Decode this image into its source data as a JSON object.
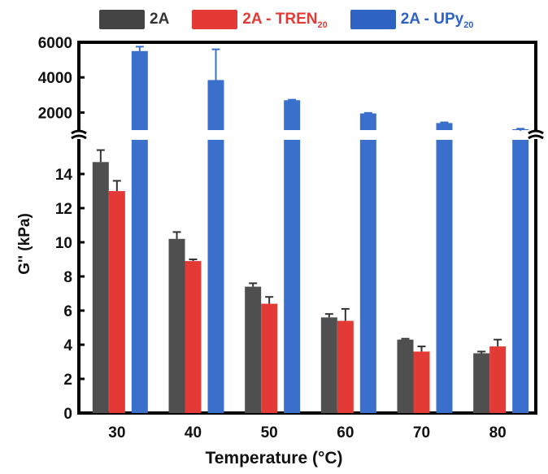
{
  "colors": {
    "2A": "#4f4f4f",
    "2A-TREN": "#e43a36",
    "2A-UPy": "#3a6fcc"
  },
  "legend": [
    {
      "key": "2A",
      "main": "2A",
      "sub": "",
      "color": "#444444"
    },
    {
      "key": "2A-TREN",
      "main": "2A - TREN",
      "sub": "20",
      "color": "#e43a36"
    },
    {
      "key": "2A-UPy",
      "main": "2A - UPy",
      "sub": "20",
      "color": "#2e63c4"
    }
  ],
  "chart_data": {
    "type": "bar",
    "xlabel": "Temperature (°C)",
    "ylabel": "G'' (kPa)",
    "broken_axis": true,
    "lower_ylim": [
      0,
      16
    ],
    "upper_ylim": [
      1000,
      6000
    ],
    "lower_ticks": [
      "0",
      "2",
      "4",
      "6",
      "8",
      "10",
      "12",
      "14"
    ],
    "upper_ticks": [
      "2000",
      "4000",
      "6000"
    ],
    "categories": [
      "30",
      "40",
      "50",
      "60",
      "70",
      "80"
    ],
    "series": [
      {
        "name": "2A",
        "values": [
          14.7,
          10.2,
          7.4,
          5.6,
          4.3,
          3.5
        ],
        "errors": [
          0.7,
          0.4,
          0.2,
          0.2,
          0.05,
          0.1
        ]
      },
      {
        "name": "2A - TREN20",
        "values": [
          13.0,
          8.9,
          6.4,
          5.4,
          3.6,
          3.9
        ],
        "errors": [
          0.6,
          0.1,
          0.4,
          0.7,
          0.3,
          0.4
        ]
      },
      {
        "name": "2A - UPy20",
        "values": [
          5500,
          3850,
          2700,
          1950,
          1400,
          1050
        ],
        "errors": [
          250,
          1750,
          30,
          30,
          40,
          30
        ]
      }
    ]
  }
}
